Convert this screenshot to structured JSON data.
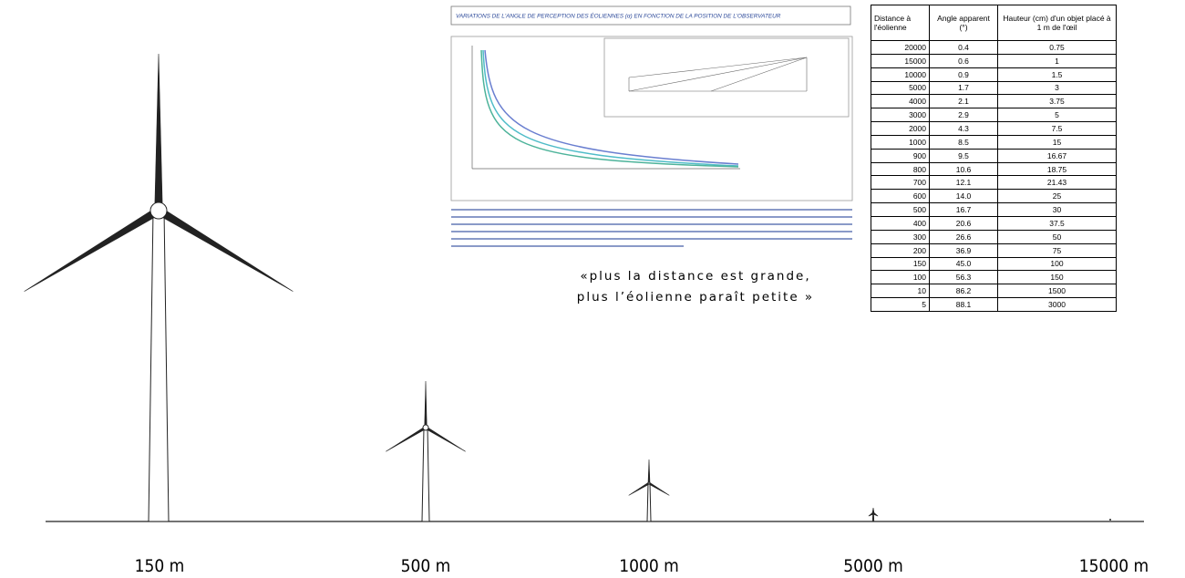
{
  "chart_title": "VARIATIONS DE L'ANGLE DE PERCEPTION DES ÉOLIENNES (α) EN FONCTION DE LA POSITION DE L'OBSERVATEUR",
  "table": {
    "headers": [
      "Distance à l'éolienne",
      "Angle apparent (°)",
      "Hauteur (cm) d'un objet placé à 1 m de l'œil"
    ],
    "rows": [
      [
        "20000",
        "0.4",
        "0.75"
      ],
      [
        "15000",
        "0.6",
        "1"
      ],
      [
        "10000",
        "0.9",
        "1.5"
      ],
      [
        "5000",
        "1.7",
        "3"
      ],
      [
        "4000",
        "2.1",
        "3.75"
      ],
      [
        "3000",
        "2.9",
        "5"
      ],
      [
        "2000",
        "4.3",
        "7.5"
      ],
      [
        "1000",
        "8.5",
        "15"
      ],
      [
        "900",
        "9.5",
        "16.67"
      ],
      [
        "800",
        "10.6",
        "18.75"
      ],
      [
        "700",
        "12.1",
        "21.43"
      ],
      [
        "600",
        "14.0",
        "25"
      ],
      [
        "500",
        "16.7",
        "30"
      ],
      [
        "400",
        "20.6",
        "37.5"
      ],
      [
        "300",
        "26.6",
        "50"
      ],
      [
        "200",
        "36.9",
        "75"
      ],
      [
        "150",
        "45.0",
        "100"
      ],
      [
        "100",
        "56.3",
        "150"
      ],
      [
        "10",
        "86.2",
        "1500"
      ],
      [
        "5",
        "88.1",
        "3000"
      ]
    ]
  },
  "quote": [
    "«plus la distance est grande,",
    "plus l’éolienne paraît petite »"
  ],
  "distances": [
    "150 m",
    "500 m",
    "1000 m",
    "5000 m",
    "15000 m"
  ]
}
